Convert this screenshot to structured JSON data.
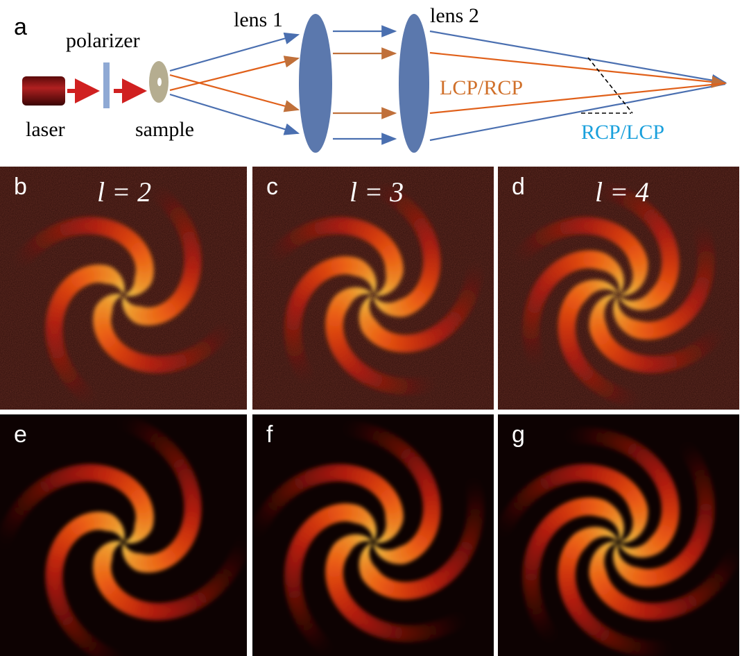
{
  "panel_a": {
    "label": "a",
    "laser": "laser",
    "polarizer": "polarizer",
    "sample": "sample",
    "lens1": "lens 1",
    "lens2": "lens 2",
    "lcp_rcp": "LCP/RCP",
    "rcp_lcp": "RCP/LCP"
  },
  "experiment": [
    {
      "label": "b",
      "caption": "l = 2"
    },
    {
      "label": "c",
      "caption": "l = 3"
    },
    {
      "label": "d",
      "caption": "l = 4"
    }
  ],
  "simulation": [
    {
      "label": "e"
    },
    {
      "label": "f"
    },
    {
      "label": "g"
    }
  ]
}
